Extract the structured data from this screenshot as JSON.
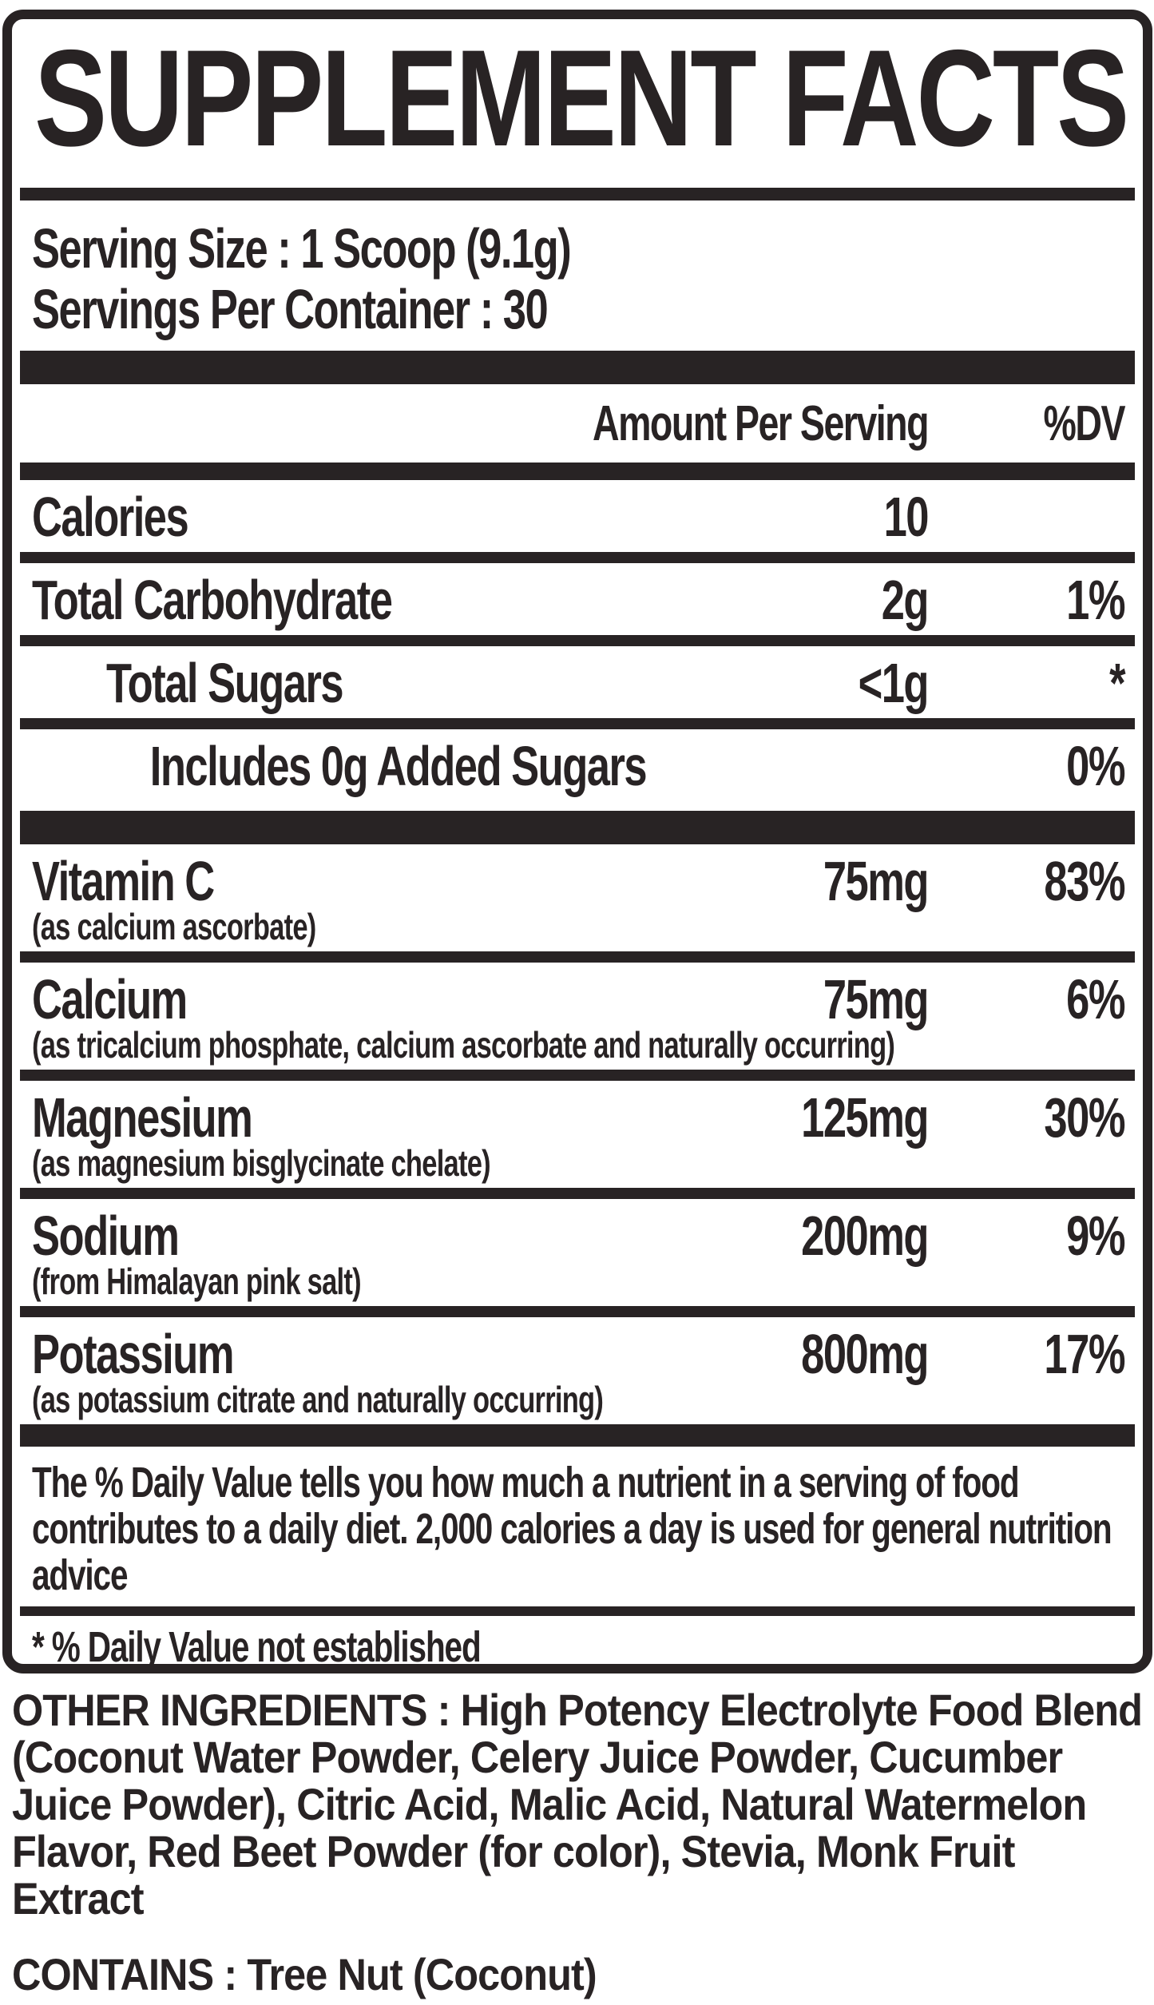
{
  "label": {
    "title": "SUPPLEMENT FACTS",
    "colors": {
      "ink": "#282324",
      "background": "#ffffff"
    },
    "serving": {
      "serving_size": "Serving Size : 1 Scoop (9.1g)",
      "servings_per_container": "Servings Per Container : 30"
    },
    "header": {
      "amount": "Amount Per Serving",
      "dv": "%DV"
    },
    "rows": [
      {
        "name": "Calories",
        "sub": "",
        "amount": "10",
        "dv": "",
        "indent": 0
      },
      {
        "name": "Total Carbohydrate",
        "sub": "",
        "amount": "2g",
        "dv": "1%",
        "indent": 0
      },
      {
        "name": "Total Sugars",
        "sub": "",
        "amount": "<1g",
        "dv": "*",
        "indent": 1
      },
      {
        "name": "Includes 0g Added Sugars",
        "sub": "",
        "amount": "",
        "dv": "0%",
        "indent": 2
      },
      {
        "name": "Vitamin C",
        "sub": "(as calcium ascorbate)",
        "amount": "75mg",
        "dv": "83%",
        "indent": 0
      },
      {
        "name": "Calcium",
        "sub": "(as tricalcium phosphate, calcium ascorbate and naturally occurring)",
        "amount": "75mg",
        "dv": "6%",
        "indent": 0
      },
      {
        "name": "Magnesium",
        "sub": "(as magnesium bisglycinate chelate)",
        "amount": "125mg",
        "dv": "30%",
        "indent": 0
      },
      {
        "name": "Sodium",
        "sub": "(from Himalayan pink salt)",
        "amount": "200mg",
        "dv": "9%",
        "indent": 0
      },
      {
        "name": "Potassium",
        "sub": "(as potassium citrate and naturally occurring)",
        "amount": "800mg",
        "dv": "17%",
        "indent": 0
      }
    ],
    "footnote": "The % Daily Value tells you how much a nutrient in a serving of food contributes to a daily diet. 2,000 calories a day is used for general nutrition advice",
    "asterisk_note": "* % Daily Value not established",
    "other_ingredients_label": "OTHER INGREDIENTS :",
    "other_ingredients_text": "High Potency Electrolyte Food Blend (Coconut Water Powder, Celery Juice Powder, Cucumber Juice Powder), Citric Acid, Malic Acid, Natural Watermelon Flavor, Red Beet Powder (for color), Stevia, Monk Fruit Extract",
    "contains_label": "CONTAINS :",
    "contains_text": "Tree Nut (Coconut)"
  }
}
